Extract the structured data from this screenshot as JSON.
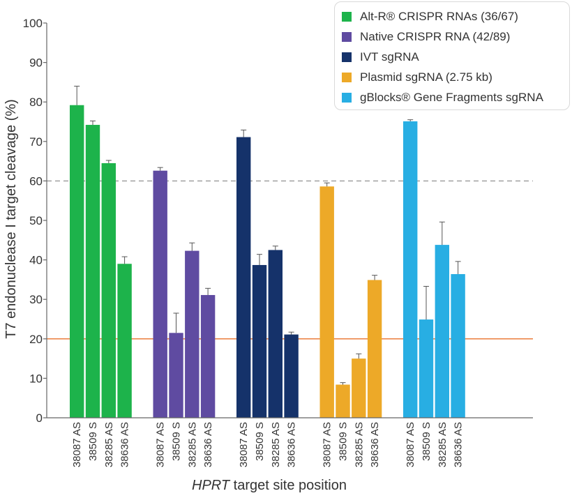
{
  "chart_data": {
    "type": "bar",
    "title": "",
    "ylabel": "T7 endonuclease I target cleavage (%)",
    "xlabel_italic": "HPRT",
    "xlabel_rest": " target site position",
    "ylim": [
      0,
      100
    ],
    "yticks": [
      0,
      10,
      20,
      30,
      40,
      50,
      60,
      70,
      80,
      90,
      100
    ],
    "legend_position": "top-right",
    "reference_lines": [
      {
        "value": 60,
        "style": "dashed",
        "color": "#999999"
      },
      {
        "value": 20,
        "style": "solid",
        "color": "#e8712a"
      }
    ],
    "series": [
      {
        "name": "Alt-R® CRISPR RNAs (36/67)",
        "color": "#1db34b",
        "categories": [
          "38087 AS",
          "38509 S",
          "38285 AS",
          "38636 AS"
        ],
        "values": [
          79.2,
          74.2,
          64.5,
          39.0
        ],
        "errors": [
          4.8,
          1.0,
          0.7,
          1.8
        ]
      },
      {
        "name": "Native CRISPR RNA (42/89)",
        "color": "#5f4ba1",
        "categories": [
          "38087 AS",
          "38509 S",
          "38285 AS",
          "38636 AS"
        ],
        "values": [
          62.6,
          21.5,
          42.3,
          31.1
        ],
        "errors": [
          0.8,
          5.0,
          2.0,
          1.7
        ]
      },
      {
        "name": "IVT sgRNA",
        "color": "#15326a",
        "categories": [
          "38087 AS",
          "38509 S",
          "38285 AS",
          "38636 AS"
        ],
        "values": [
          71.1,
          38.7,
          42.5,
          21.1
        ],
        "errors": [
          1.8,
          2.7,
          1.0,
          0.6
        ]
      },
      {
        "name": "Plasmid sgRNA (2.75 kb)",
        "color": "#eda928",
        "categories": [
          "38087 AS",
          "38509 S",
          "38285 AS",
          "38636 AS"
        ],
        "values": [
          58.6,
          8.4,
          15.0,
          34.9
        ],
        "errors": [
          0.9,
          0.5,
          1.2,
          1.2
        ]
      },
      {
        "name": "gBlocks® Gene Fragments sgRNA",
        "color": "#28aee3",
        "categories": [
          "38087 AS",
          "38509 S",
          "38285 AS",
          "38636 AS"
        ],
        "values": [
          75.1,
          24.9,
          43.8,
          36.4
        ],
        "errors": [
          0.4,
          8.4,
          5.8,
          3.2
        ]
      }
    ]
  }
}
